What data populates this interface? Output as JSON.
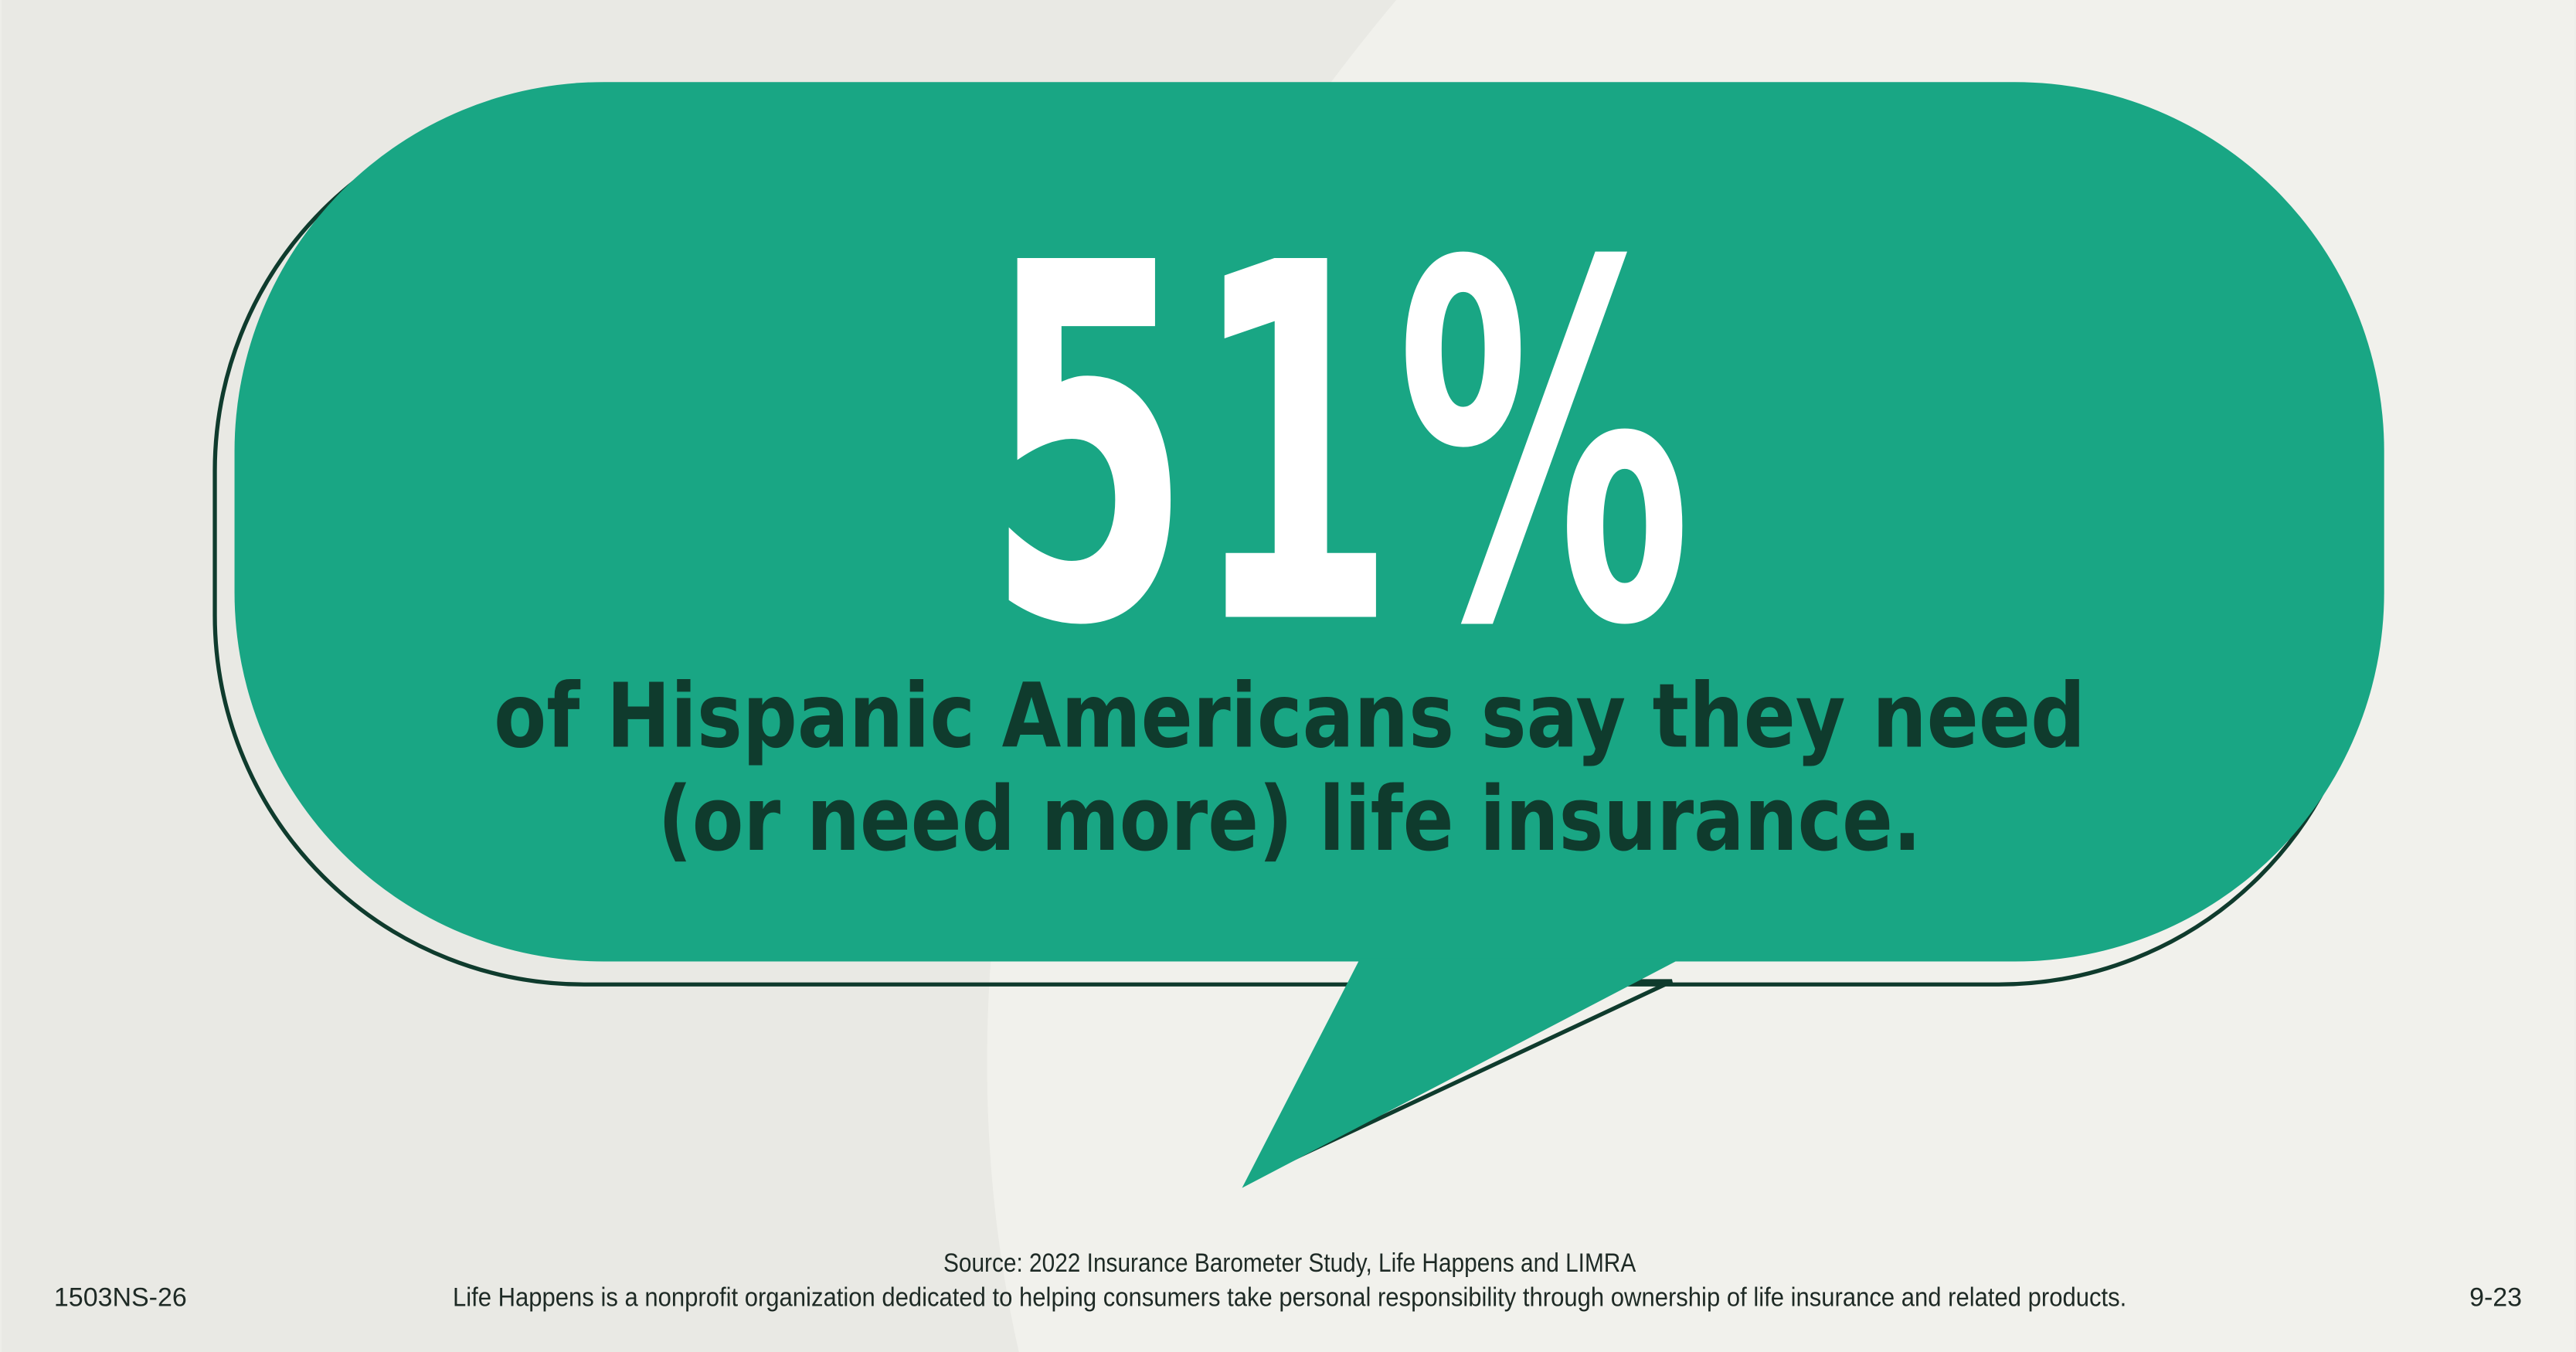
{
  "headline": {
    "stat": "51%",
    "text_lines": [
      "of Hispanic Americans say they need",
      "(or need more) life insurance."
    ]
  },
  "footer": {
    "code": "1503NS-26",
    "date": "9-23",
    "source": "Source: 2022 Insurance Barometer Study, Life Happens and LIMRA",
    "note": "Life Happens is a nonprofit organization dedicated to helping consumers take personal responsibility through ownership of life insurance and related products."
  }
}
